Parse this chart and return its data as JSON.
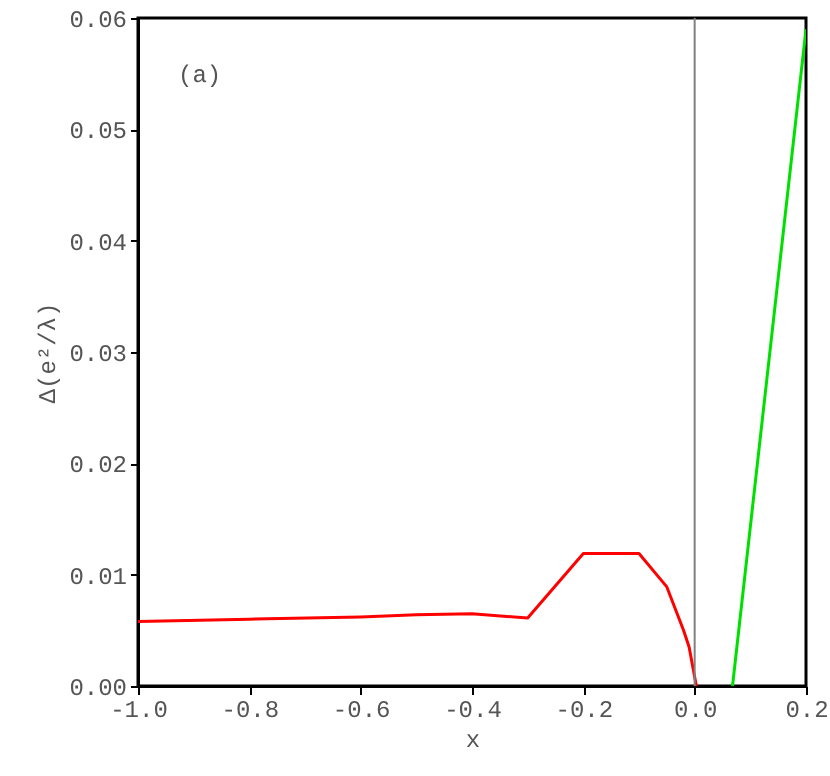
{
  "chart_data": {
    "type": "line",
    "xlabel": "x",
    "ylabel": "Δ(e²/λ)",
    "annotations": [
      "(a)"
    ],
    "series": [
      {
        "color": "#ff0000",
        "x": [
          -1.0,
          -0.8,
          -0.6,
          -0.5,
          -0.4,
          -0.3,
          -0.2,
          -0.1,
          -0.05,
          -0.02,
          -0.01,
          0.003
        ],
        "values": [
          0.0058,
          0.006,
          0.0062,
          0.0064,
          0.0065,
          0.0061,
          0.0119,
          0.0119,
          0.0089,
          0.005,
          0.0035,
          0.0
        ]
      },
      {
        "color": "#00e000",
        "x": [
          0.068,
          0.2
        ],
        "values": [
          0.0,
          0.059
        ]
      }
    ],
    "ref_lines": [
      {
        "axis": "x",
        "value": 0,
        "color": "#808080"
      }
    ],
    "xlim": [
      -1.0,
      0.2
    ],
    "xticks": [
      {
        "value": -1.0,
        "label": "-1.0"
      },
      {
        "value": -0.8,
        "label": "-0.8"
      },
      {
        "value": -0.6,
        "label": "-0.6"
      },
      {
        "value": -0.4,
        "label": "-0.4"
      },
      {
        "value": -0.2,
        "label": "-0.2"
      },
      {
        "value": 0.0,
        "label": "0.0"
      },
      {
        "value": 0.2,
        "label": "0.2"
      }
    ],
    "ylim": [
      0,
      0.06
    ],
    "yticks": [
      {
        "value": 0,
        "label": "0.00"
      },
      {
        "value": 0.01,
        "label": "0.01"
      },
      {
        "value": 0.02,
        "label": "0.02"
      },
      {
        "value": 0.03,
        "label": "0.03"
      },
      {
        "value": 0.04,
        "label": "0.04"
      },
      {
        "value": 0.05,
        "label": "0.05"
      },
      {
        "value": 0.06,
        "label": "0.06"
      }
    ],
    "grid": false
  }
}
